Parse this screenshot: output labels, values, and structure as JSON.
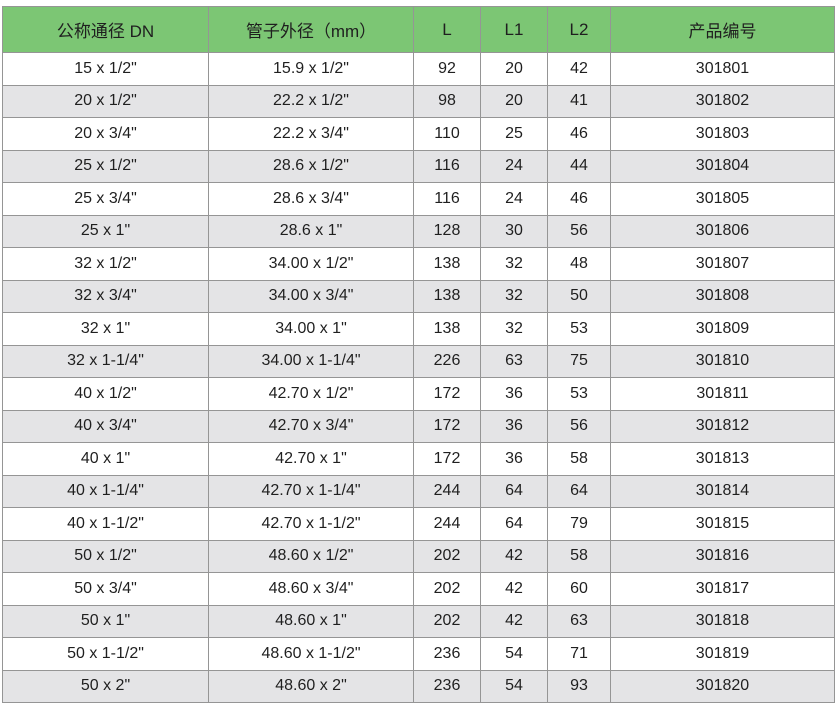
{
  "table": {
    "columns": [
      {
        "key": "dn",
        "label": "公称通径 DN"
      },
      {
        "key": "od",
        "label": "管子外径（mm）"
      },
      {
        "key": "l",
        "label": "L"
      },
      {
        "key": "l1",
        "label": "L1"
      },
      {
        "key": "l2",
        "label": "L2"
      },
      {
        "key": "code",
        "label": "产品编号"
      }
    ],
    "rows": [
      [
        "15 x 1/2\"",
        "15.9 x 1/2\"",
        "92",
        "20",
        "42",
        "301801"
      ],
      [
        "20 x 1/2\"",
        "22.2 x 1/2\"",
        "98",
        "20",
        "41",
        "301802"
      ],
      [
        "20 x 3/4\"",
        "22.2 x 3/4\"",
        "110",
        "25",
        "46",
        "301803"
      ],
      [
        "25 x 1/2\"",
        "28.6 x 1/2\"",
        "116",
        "24",
        "44",
        "301804"
      ],
      [
        "25 x 3/4\"",
        "28.6 x 3/4\"",
        "116",
        "24",
        "46",
        "301805"
      ],
      [
        "25 x 1\"",
        "28.6 x 1\"",
        "128",
        "30",
        "56",
        "301806"
      ],
      [
        "32 x 1/2\"",
        "34.00 x 1/2\"",
        "138",
        "32",
        "48",
        "301807"
      ],
      [
        "32 x 3/4\"",
        "34.00 x 3/4\"",
        "138",
        "32",
        "50",
        "301808"
      ],
      [
        "32 x 1\"",
        "34.00 x 1\"",
        "138",
        "32",
        "53",
        "301809"
      ],
      [
        "32 x 1-1/4\"",
        "34.00 x 1-1/4\"",
        "226",
        "63",
        "75",
        "301810"
      ],
      [
        "40 x 1/2\"",
        "42.70 x 1/2\"",
        "172",
        "36",
        "53",
        "301811"
      ],
      [
        "40 x 3/4\"",
        "42.70 x 3/4\"",
        "172",
        "36",
        "56",
        "301812"
      ],
      [
        "40 x 1\"",
        "42.70 x 1\"",
        "172",
        "36",
        "58",
        "301813"
      ],
      [
        "40 x 1-1/4\"",
        "42.70 x 1-1/4\"",
        "244",
        "64",
        "64",
        "301814"
      ],
      [
        "40 x 1-1/2\"",
        "42.70 x 1-1/2\"",
        "244",
        "64",
        "79",
        "301815"
      ],
      [
        "50 x 1/2\"",
        "48.60 x 1/2\"",
        "202",
        "42",
        "58",
        "301816"
      ],
      [
        "50 x 3/4\"",
        "48.60 x 3/4\"",
        "202",
        "42",
        "60",
        "301817"
      ],
      [
        "50 x 1\"",
        "48.60 x 1\"",
        "202",
        "42",
        "63",
        "301818"
      ],
      [
        "50 x 1-1/2\"",
        "48.60 x 1-1/2\"",
        "236",
        "54",
        "71",
        "301819"
      ],
      [
        "50 x 2\"",
        "48.60 x 2\"",
        "236",
        "54",
        "93",
        "301820"
      ]
    ]
  },
  "colors": {
    "header_bg": "#7cc674",
    "row_bg": "#ffffff",
    "row_alt_bg": "#e4e4e6",
    "border": "#959595",
    "text": "#1f1f1f"
  }
}
